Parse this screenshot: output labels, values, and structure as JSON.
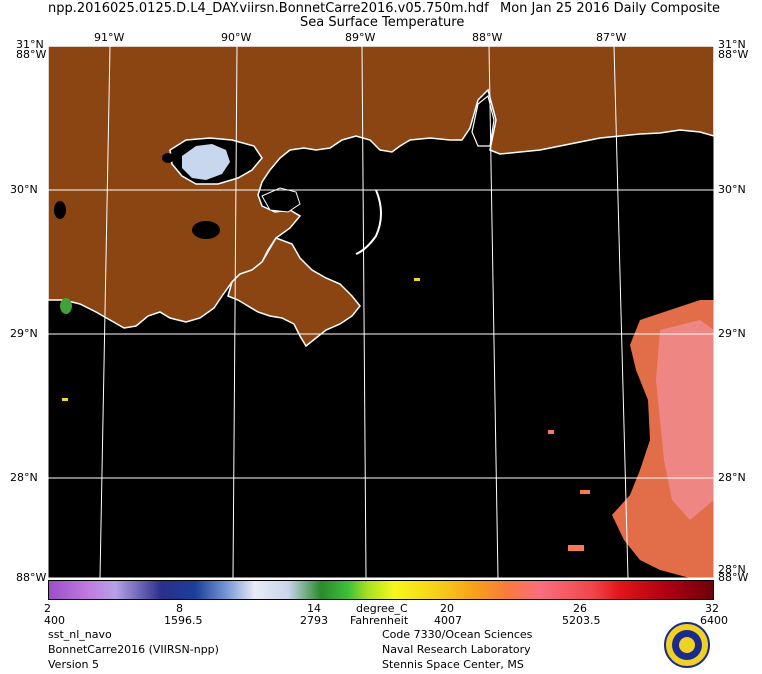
{
  "header": {
    "file": "npp.2016025.0125.D.L4_DAY.viirsn.BonnetCarre2016.v05.750m.hdf",
    "date": "Mon Jan 25 2016 Daily Composite",
    "product": "Sea Surface Temperature"
  },
  "map": {
    "lon_top_labels": [
      "91°W",
      "90°W",
      "89°W",
      "88°W",
      "87°W"
    ],
    "lat_right_labels": [
      "31°N",
      "30°N",
      "29°N",
      "28°N",
      "28°N"
    ],
    "lat_left_labels": [
      "30°N",
      "29°N",
      "28°N"
    ],
    "corner_labels": [
      "31°N",
      "88°W",
      "31°N",
      "88°W",
      "88°W",
      "88°W"
    ],
    "colors": {
      "land": "#8b4513",
      "water": "#000000",
      "grid": "#ffffff",
      "coast": "#ffffff",
      "warm_sst": "#fa7a50"
    }
  },
  "colorbar": {
    "celsius_ticks": [
      "2",
      "8",
      "14",
      "20",
      "26",
      "32"
    ],
    "fahrenheit_ticks": [
      "400",
      "1596.5",
      "2793",
      "4007",
      "5203.5",
      "6400"
    ],
    "unit_c": "degree_C",
    "unit_f": "Fahrenheit"
  },
  "footer": {
    "left": [
      "sst_nl_navo",
      "BonnetCarre2016 (VIIRSN-npp)",
      "Version 5"
    ],
    "right": [
      "Code 7330/Ocean Sciences",
      "Naval Research Laboratory",
      "Stennis Space Center, MS"
    ],
    "logo_icon": "nrl-seal-icon"
  }
}
